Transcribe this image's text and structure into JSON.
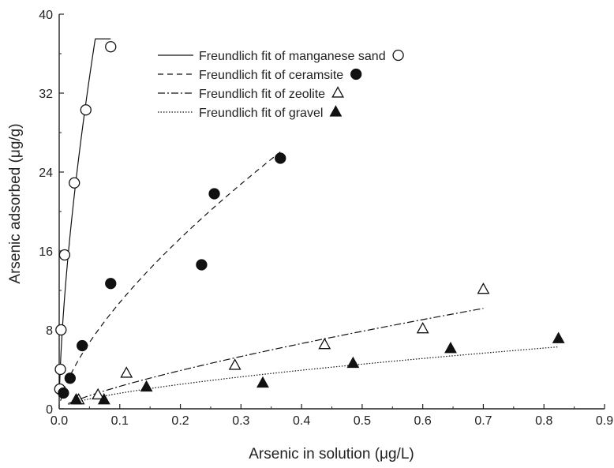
{
  "chart_data": {
    "type": "scatter",
    "xlabel": "Arsenic in solution (μg/L)",
    "ylabel": "Arsenic adsorbed (μg/g)",
    "xlim": [
      0.0,
      0.9
    ],
    "ylim": [
      0,
      40
    ],
    "x_ticks": [
      0.0,
      0.1,
      0.2,
      0.3,
      0.4,
      0.5,
      0.6,
      0.7,
      0.8,
      0.9
    ],
    "x_tick_labels": [
      "0.0",
      "0.1",
      "0.2",
      "0.3",
      "0.4",
      "0.5",
      "0.6",
      "0.7",
      "0.8",
      "0.9"
    ],
    "y_ticks": [
      0,
      8,
      16,
      24,
      32,
      40
    ],
    "y_tick_labels": [
      "0",
      "8",
      "16",
      "24",
      "32",
      "40"
    ],
    "grid": false,
    "legend_position": "top-center",
    "series": [
      {
        "name": "Freundlich fit of manganese sand",
        "marker": "open-circle",
        "line_style": "solid",
        "x": [
          0.001,
          0.002,
          0.003,
          0.009,
          0.025,
          0.044,
          0.085
        ],
        "y": [
          2.0,
          4.0,
          8.0,
          15.6,
          22.9,
          30.3,
          36.7
        ],
        "fit_x_range": [
          0.0005,
          0.085
        ]
      },
      {
        "name": "Freundlich fit of ceramsite",
        "marker": "filled-circle",
        "line_style": "dashed",
        "x": [
          0.007,
          0.018,
          0.038,
          0.085,
          0.235,
          0.256,
          0.365
        ],
        "y": [
          1.6,
          3.1,
          6.4,
          12.7,
          14.6,
          21.8,
          25.4
        ],
        "fit_x_range": [
          0.0,
          0.365
        ]
      },
      {
        "name": "Freundlich fit of zeolite",
        "marker": "open-triangle",
        "line_style": "dash-dot",
        "x": [
          0.032,
          0.064,
          0.111,
          0.29,
          0.438,
          0.6,
          0.7
        ],
        "y": [
          0.9,
          1.4,
          3.6,
          4.4,
          6.5,
          8.1,
          12.1
        ],
        "fit_x_range": [
          0.015,
          0.7
        ]
      },
      {
        "name": "Freundlich fit of gravel",
        "marker": "filled-triangle",
        "line_style": "dotted",
        "x": [
          0.028,
          0.074,
          0.144,
          0.336,
          0.485,
          0.646,
          0.824
        ],
        "y": [
          0.9,
          0.9,
          2.2,
          2.6,
          4.6,
          6.1,
          7.1
        ],
        "fit_x_range": [
          0.015,
          0.824
        ]
      }
    ]
  }
}
